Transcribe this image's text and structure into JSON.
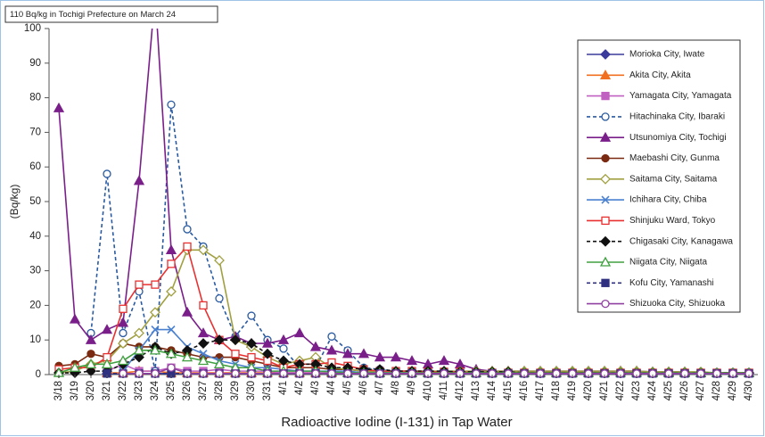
{
  "chart_data": {
    "type": "line",
    "annotation": "110 Bq/kg in Tochigi Prefecture on March 24",
    "y_label": "(Bq/kg)",
    "x_label": "Radioactive Iodine (I-131) in Tap Water",
    "ylim": [
      0,
      100
    ],
    "yticks": [
      0,
      10,
      20,
      30,
      40,
      50,
      60,
      70,
      80,
      90,
      100
    ],
    "categories": [
      "3/18",
      "3/19",
      "3/20",
      "3/21",
      "3/22",
      "3/23",
      "3/24",
      "3/25",
      "3/26",
      "3/27",
      "3/28",
      "3/29",
      "3/30",
      "3/31",
      "4/1",
      "4/2",
      "4/3",
      "4/4",
      "4/5",
      "4/6",
      "4/7",
      "4/8",
      "4/9",
      "4/10",
      "4/11",
      "4/12",
      "4/13",
      "4/14",
      "4/15",
      "4/16",
      "4/17",
      "4/18",
      "4/19",
      "4/20",
      "4/21",
      "4/22",
      "4/23",
      "4/24",
      "4/25",
      "4/26",
      "4/27",
      "4/28",
      "4/29",
      "4/30"
    ],
    "series": [
      {
        "name": "Morioka City, Iwate",
        "color": "#3b3b9c",
        "marker": "diamond",
        "open": false,
        "dashed": false,
        "values": [
          null,
          null,
          null,
          0.3,
          0.3,
          0.3,
          0.3,
          0.3,
          0.3,
          0.3,
          0.3,
          0.3,
          0.3,
          0.3,
          0.3,
          0.3,
          0.3,
          0.3,
          0.3,
          0.3,
          0.3,
          0.3,
          0.3,
          0.3,
          0.3,
          0.3,
          0.3,
          0.3,
          0.3,
          0.3,
          0.3,
          0.3,
          0.3,
          0.3,
          0.3,
          0.3,
          0.3,
          0.3,
          0.3,
          0.3,
          0.3,
          0.3,
          0.3,
          0.3
        ]
      },
      {
        "name": "Akita City, Akita",
        "color": "#f07020",
        "marker": "triangle",
        "open": false,
        "dashed": false,
        "values": [
          null,
          null,
          null,
          0.5,
          0.5,
          1,
          1,
          0.5,
          0.5,
          0.5,
          0.5,
          0.5,
          0.5,
          0.5,
          0.5,
          0.5,
          0.5,
          0.5,
          0.5,
          0.5,
          0.5,
          0.5,
          0.5,
          0.5,
          0.5,
          0.5,
          0.5,
          0.5,
          0.5,
          0.5,
          0.5,
          0.5,
          0.5,
          0.5,
          0.5,
          1,
          1,
          0.5,
          0.5,
          0.5,
          0.5,
          0.5,
          0.5,
          0.5
        ]
      },
      {
        "name": "Yamagata City, Yamagata",
        "color": "#c060c0",
        "marker": "square",
        "open": false,
        "dashed": false,
        "values": [
          null,
          null,
          null,
          1,
          3,
          1,
          1,
          2,
          1,
          1,
          1.5,
          1,
          1,
          1,
          0.5,
          0.5,
          0.5,
          0.5,
          0.5,
          0.5,
          0.5,
          0.5,
          0.5,
          0.5,
          0.5,
          0.5,
          0.5,
          0.5,
          0.5,
          0.5,
          0.5,
          0.5,
          0.5,
          0.5,
          0.5,
          0.5,
          0.5,
          0.5,
          0.5,
          0.5,
          0.5,
          0.5,
          0.5,
          0.5
        ]
      },
      {
        "name": "Hitachinaka City, Ibaraki",
        "color": "#2a5aa0",
        "marker": "circle",
        "open": true,
        "dashed": true,
        "values": [
          null,
          null,
          12,
          58,
          12,
          24,
          1,
          78,
          42,
          37,
          22,
          11,
          17,
          10,
          7.5,
          2,
          2,
          11,
          7,
          2,
          1.5,
          1,
          1,
          0.8,
          0.8,
          0.5,
          0.5,
          0.5,
          0.5,
          0.5,
          0.5,
          0.5,
          0.5,
          0.5,
          0.5,
          0.5,
          0.5,
          0.5,
          0.5,
          0.5,
          0.3,
          0.3,
          0.3,
          0.3
        ]
      },
      {
        "name": "Utsunomiya City, Tochigi",
        "color": "#7a1f8a",
        "marker": "triangle",
        "open": false,
        "dashed": false,
        "values": [
          77,
          16,
          10,
          13,
          15,
          56,
          110,
          36,
          18,
          12,
          10,
          11,
          9,
          9,
          10,
          12,
          8,
          7,
          6,
          6,
          5,
          5,
          4,
          3,
          4,
          3,
          1.5,
          1,
          1,
          1,
          1,
          1,
          1,
          1,
          1,
          1,
          1,
          0.8,
          0.8,
          0.8,
          0.5,
          0.5,
          0.5,
          0.5
        ]
      },
      {
        "name": "Maebashi City, Gunma",
        "color": "#7a2a10",
        "marker": "circle",
        "open": false,
        "dashed": false,
        "values": [
          2.5,
          3,
          6,
          5,
          9,
          8,
          8,
          7,
          6,
          5,
          5,
          5,
          4,
          3,
          2,
          2,
          2,
          1.5,
          1.5,
          1,
          1,
          1,
          1,
          1,
          0.8,
          0.8,
          0.8,
          0.8,
          0.8,
          0.8,
          0.8,
          0.8,
          0.8,
          0.8,
          0.5,
          0.5,
          0.5,
          0.5,
          0.5,
          0.5,
          0.5,
          0.5,
          0.5,
          0.5
        ]
      },
      {
        "name": "Saitama City, Saitama",
        "color": "#a0a040",
        "marker": "diamond",
        "open": true,
        "dashed": false,
        "values": [
          0.5,
          1,
          3,
          4,
          9,
          12,
          18,
          24,
          36,
          36,
          33,
          10,
          8,
          5,
          3,
          4,
          5,
          2,
          1.5,
          1,
          1,
          1,
          1,
          1,
          1,
          1,
          1,
          1,
          1,
          1,
          1,
          1,
          1,
          1,
          1,
          1,
          1,
          0.8,
          0.8,
          0.8,
          0.8,
          0.5,
          0.5,
          0.5
        ]
      },
      {
        "name": "Ichihara City, Chiba",
        "color": "#4a80d0",
        "marker": "x",
        "open": false,
        "dashed": false,
        "values": [
          null,
          null,
          null,
          null,
          1,
          7,
          13,
          13,
          8,
          6,
          4,
          3,
          2,
          2,
          1.5,
          1,
          1,
          1,
          1,
          0.5,
          0.5,
          0.5,
          0.5,
          0.5,
          0.3,
          0.3,
          0.3,
          0.3,
          0.3,
          0.3,
          0.3,
          0.3,
          0.3,
          0.3,
          0.3,
          0.3,
          0.3,
          0.3,
          0.3,
          0.3,
          0.3,
          0.3,
          0.3,
          0.3
        ]
      },
      {
        "name": "Shinjuku Ward, Tokyo",
        "color": "#e83030",
        "marker": "square",
        "open": true,
        "dashed": false,
        "values": [
          1.5,
          2,
          2,
          5,
          19,
          26,
          26,
          32,
          37,
          20,
          10,
          6,
          5,
          4,
          2,
          3,
          3,
          3.5,
          2.5,
          1.5,
          1,
          1,
          1,
          0.8,
          0.8,
          0.8,
          0.5,
          0.5,
          0.5,
          0.5,
          0.5,
          0.5,
          0.5,
          0.5,
          0.5,
          0.5,
          0.5,
          0.5,
          0.5,
          0.5,
          0.5,
          0.5,
          0.5,
          0.5
        ]
      },
      {
        "name": "Chigasaki City, Kanagawa",
        "color": "#111111",
        "marker": "diamond",
        "open": false,
        "dashed": true,
        "values": [
          0.5,
          0.5,
          1,
          1,
          3,
          5,
          8,
          6,
          7,
          9,
          10,
          10,
          9,
          6,
          4,
          3,
          3,
          2,
          2,
          1.5,
          1.5,
          1,
          1,
          1,
          1,
          0.8,
          0.8,
          0.8,
          0.8,
          0.5,
          0.5,
          0.5,
          0.5,
          0.5,
          0.5,
          0.5,
          0.5,
          0.5,
          0.5,
          0.5,
          0.5,
          0.5,
          0.5,
          0.5
        ]
      },
      {
        "name": "Niigata City, Niigata",
        "color": "#40a040",
        "marker": "triangle",
        "open": true,
        "dashed": false,
        "values": [
          0.5,
          2,
          3,
          3,
          4,
          7,
          7,
          6,
          5,
          4,
          3,
          2,
          2,
          1,
          1,
          1,
          1,
          0.8,
          0.5,
          0.5,
          0.5,
          0.5,
          0.5,
          0.5,
          0.5,
          0.5,
          0.5,
          0.5,
          0.5,
          0.5,
          0.5,
          0.5,
          0.5,
          0.5,
          0.5,
          0.5,
          0.5,
          0.5,
          0.5,
          0.5,
          0.5,
          0.5,
          0.5,
          0.5
        ]
      },
      {
        "name": "Kofu City, Yamanashi",
        "color": "#303080",
        "marker": "square",
        "open": false,
        "dashed": true,
        "values": [
          null,
          null,
          null,
          0.3,
          0.3,
          0.3,
          0.3,
          0.3,
          0.3,
          0.3,
          0.3,
          0.3,
          0.3,
          0.3,
          0.3,
          0.3,
          0.3,
          0.3,
          0.3,
          0.3,
          0.3,
          0.3,
          0.3,
          0.3,
          0.3,
          0.3,
          0.3,
          0.3,
          0.3,
          0.3,
          0.3,
          0.3,
          0.3,
          0.3,
          0.3,
          0.3,
          0.3,
          0.3,
          0.3,
          0.3,
          0.3,
          0.3,
          0.3,
          0.3
        ]
      },
      {
        "name": "Shizuoka City, Shizuoka",
        "color": "#9040a0",
        "marker": "circle",
        "open": true,
        "dashed": false,
        "values": [
          null,
          null,
          null,
          null,
          0.3,
          0.3,
          0.3,
          2,
          0.3,
          0.3,
          0.3,
          0.3,
          0.3,
          0.3,
          0.3,
          0.3,
          0.3,
          0.3,
          0.3,
          0.3,
          0.3,
          0.3,
          0.3,
          0.3,
          0.3,
          0.3,
          0.3,
          0.3,
          0.3,
          0.3,
          0.3,
          0.3,
          0.3,
          0.3,
          0.3,
          0.3,
          0.3,
          0.3,
          0.3,
          0.3,
          0.3,
          0.3,
          0.3,
          0.3
        ]
      }
    ]
  }
}
